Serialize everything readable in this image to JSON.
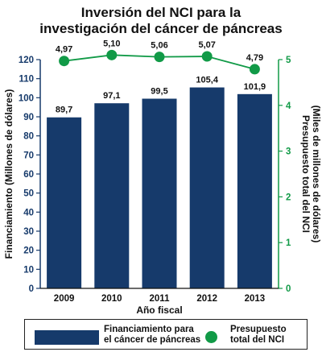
{
  "title": {
    "line1": "Inversión del NCI para la",
    "line2": "investigación del cáncer de páncreas"
  },
  "chart_data": {
    "type": "bar",
    "categories": [
      "2009",
      "2010",
      "2011",
      "2012",
      "2013"
    ],
    "series": [
      {
        "name": "Financiamiento para el cáncer de páncreas",
        "kind": "bar",
        "axis": "left",
        "color": "#163a6b",
        "values": [
          89.7,
          97.1,
          99.5,
          105.4,
          101.9
        ],
        "labels": [
          "89,7",
          "97,1",
          "99,5",
          "105,4",
          "101,9"
        ]
      },
      {
        "name": "Presupuesto total del NCI",
        "kind": "line",
        "axis": "right",
        "color": "#119a47",
        "values": [
          4.97,
          5.1,
          5.06,
          5.07,
          4.79
        ],
        "labels": [
          "4,97",
          "5,10",
          "5,06",
          "5,07",
          "4,79"
        ]
      }
    ],
    "xlabel": "Año fiscal",
    "ylabel_left": "Financiamiento (Millones de dólares)",
    "ylabel_right_line1": "Presupuesto total del NCI",
    "ylabel_right_line2": "(Miles de millones de dólares)",
    "ylim_left": [
      0,
      120
    ],
    "yticks_left": [
      "0",
      "10",
      "20",
      "30",
      "40",
      "50",
      "60",
      "70",
      "80",
      "90",
      "100",
      "110",
      "120"
    ],
    "ylim_right": [
      0,
      5
    ],
    "yticks_right": [
      "0",
      "1",
      "2",
      "3",
      "4",
      "5"
    ],
    "left_axis_color": "#163a6b",
    "right_axis_color": "#119a47",
    "grid": false,
    "legend_position": "bottom"
  },
  "legend": {
    "bar_label_line1": "Financiamiento para",
    "bar_label_line2": "el cáncer de páncreas",
    "dot_label_line1": "Presupuesto",
    "dot_label_line2": "total del NCI"
  }
}
